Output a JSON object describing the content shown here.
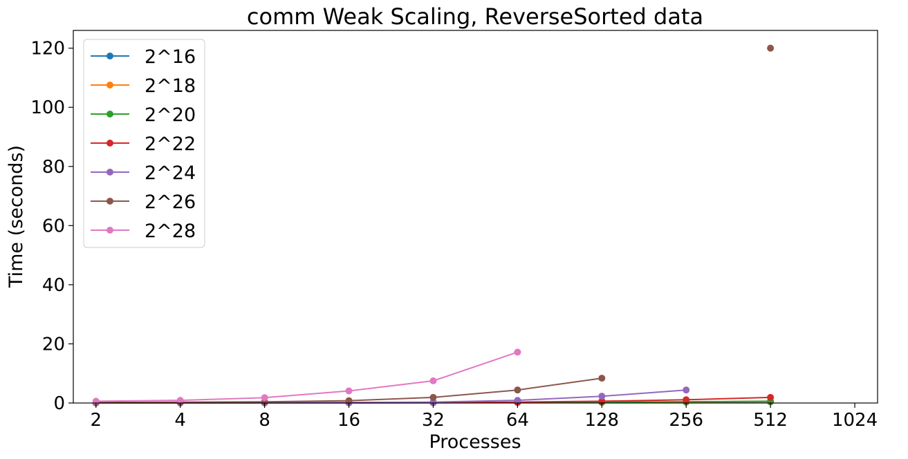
{
  "chart_data": {
    "type": "line",
    "title": "comm Weak Scaling, ReverseSorted data",
    "xlabel": "Processes",
    "ylabel": "Time (seconds)",
    "x_scale": "log2",
    "x_ticks": [
      2,
      4,
      8,
      16,
      32,
      64,
      128,
      256,
      512,
      1024
    ],
    "x_tick_labels": [
      "2",
      "4",
      "8",
      "16",
      "32",
      "64",
      "128",
      "256",
      "512",
      "1024"
    ],
    "y_ticks": [
      0,
      20,
      40,
      60,
      80,
      100,
      120
    ],
    "y_tick_labels": [
      "0",
      "20",
      "40",
      "60",
      "80",
      "100",
      "120"
    ],
    "ylim": [
      0,
      126
    ],
    "grid": false,
    "legend_position": "top-left",
    "series": [
      {
        "name": "2^16",
        "color": "#1f77b4",
        "points": [
          [
            2,
            0.05
          ],
          [
            4,
            0.05
          ],
          [
            8,
            0.06
          ],
          [
            16,
            0.08
          ],
          [
            32,
            0.1
          ],
          [
            64,
            0.15
          ],
          [
            128,
            0.2
          ],
          [
            256,
            0.3
          ],
          [
            512,
            0.4
          ]
        ]
      },
      {
        "name": "2^18",
        "color": "#ff7f0e",
        "points": [
          [
            2,
            0.06
          ],
          [
            4,
            0.07
          ],
          [
            8,
            0.08
          ],
          [
            16,
            0.1
          ],
          [
            32,
            0.12
          ],
          [
            64,
            0.18
          ],
          [
            128,
            0.25
          ],
          [
            256,
            0.35
          ],
          [
            512,
            0.5
          ]
        ]
      },
      {
        "name": "2^20",
        "color": "#2ca02c",
        "points": [
          [
            2,
            0.08
          ],
          [
            4,
            0.09
          ],
          [
            8,
            0.1
          ],
          [
            16,
            0.12
          ],
          [
            32,
            0.15
          ],
          [
            64,
            0.2
          ],
          [
            128,
            0.3
          ],
          [
            256,
            0.45
          ],
          [
            512,
            0.6
          ]
        ]
      },
      {
        "name": "2^22",
        "color": "#d62728",
        "points": [
          [
            2,
            0.1
          ],
          [
            4,
            0.1
          ],
          [
            8,
            0.12
          ],
          [
            16,
            0.15
          ],
          [
            32,
            0.2
          ],
          [
            64,
            0.3
          ],
          [
            128,
            0.6
          ],
          [
            256,
            1.1
          ],
          [
            512,
            1.9
          ]
        ]
      },
      {
        "name": "2^24",
        "color": "#9467bd",
        "points": [
          [
            2,
            0.1
          ],
          [
            4,
            0.12
          ],
          [
            8,
            0.15
          ],
          [
            16,
            0.2
          ],
          [
            32,
            0.3
          ],
          [
            64,
            0.9
          ],
          [
            128,
            2.3
          ],
          [
            256,
            4.4
          ]
        ]
      },
      {
        "name": "2^26",
        "color": "#8c564b",
        "points": [
          [
            2,
            0.2
          ],
          [
            4,
            0.3
          ],
          [
            8,
            0.4
          ],
          [
            16,
            0.8
          ],
          [
            32,
            1.9
          ],
          [
            64,
            4.4
          ],
          [
            128,
            8.4
          ]
        ],
        "extra_points": [
          [
            512,
            120.0
          ]
        ]
      },
      {
        "name": "2^28",
        "color": "#e377c2",
        "points": [
          [
            2,
            0.6
          ],
          [
            4,
            0.9
          ],
          [
            8,
            1.8
          ],
          [
            16,
            4.1
          ],
          [
            32,
            7.5
          ],
          [
            64,
            17.2
          ]
        ]
      }
    ]
  }
}
